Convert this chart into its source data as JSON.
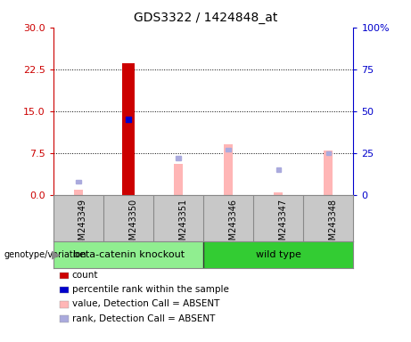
{
  "title": "GDS3322 / 1424848_at",
  "samples": [
    "GSM243349",
    "GSM243350",
    "GSM243351",
    "GSM243346",
    "GSM243347",
    "GSM243348"
  ],
  "group1_label": "beta-catenin knockout",
  "group1_indices": [
    0,
    1,
    2
  ],
  "group1_color": "#90EE90",
  "group2_label": "wild type",
  "group2_indices": [
    3,
    4,
    5
  ],
  "group2_color": "#33CC33",
  "red_bars": [
    0.0,
    23.5,
    0.0,
    0.0,
    0.0,
    0.0
  ],
  "blue_square_idx": 1,
  "blue_square_pct": 45.0,
  "pink_bars": [
    1.0,
    null,
    5.5,
    9.0,
    0.5,
    8.0
  ],
  "lightblue_squares_pct": [
    8.0,
    null,
    22.0,
    27.0,
    15.0,
    25.0
  ],
  "ylim_left": [
    0,
    30
  ],
  "ylim_right": [
    0,
    100
  ],
  "yticks_left": [
    0,
    7.5,
    15,
    22.5,
    30
  ],
  "yticks_right": [
    0,
    25,
    50,
    75,
    100
  ],
  "ytick_labels_right": [
    "0",
    "25",
    "50",
    "75",
    "100%"
  ],
  "left_axis_color": "#CC0000",
  "right_axis_color": "#0000CC",
  "red_bar_color": "#CC0000",
  "blue_square_color": "#0000CC",
  "pink_bar_color": "#FFB6B6",
  "lightblue_square_color": "#AAAADD",
  "sample_area_color": "#C8C8C8",
  "bar_width": 0.25,
  "pink_bar_width": 0.18,
  "legend_items": [
    {
      "color": "#CC0000",
      "label": "count"
    },
    {
      "color": "#0000CC",
      "label": "percentile rank within the sample"
    },
    {
      "color": "#FFB6B6",
      "label": "value, Detection Call = ABSENT"
    },
    {
      "color": "#AAAADD",
      "label": "rank, Detection Call = ABSENT"
    }
  ],
  "title_fontsize": 10,
  "tick_fontsize": 8,
  "sample_fontsize": 7,
  "group_fontsize": 8,
  "legend_fontsize": 7.5
}
